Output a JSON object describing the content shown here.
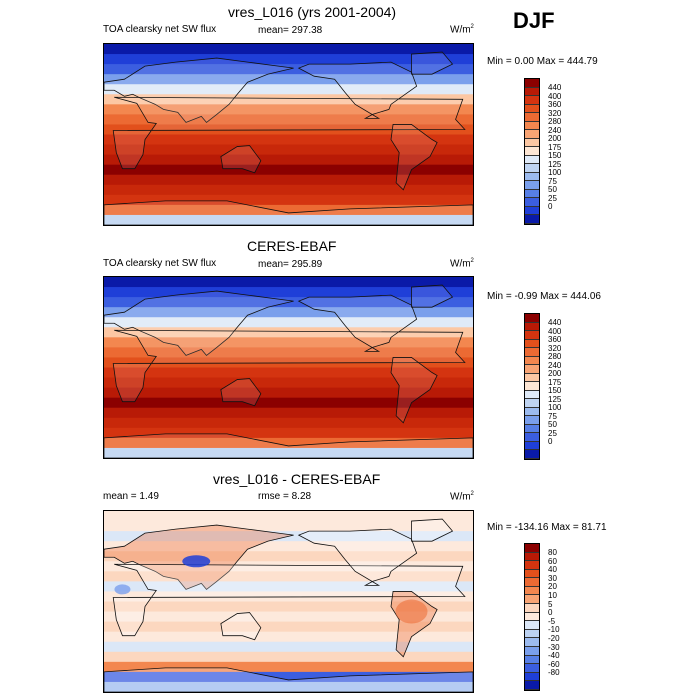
{
  "season": "DJF",
  "panels": [
    {
      "title": "vres_L016 (yrs 2001-2004)",
      "left_label": "TOA clearsky net SW flux",
      "center_label": "mean=  297.38",
      "unit": "W/m",
      "unit_sup": "2",
      "minmax": "Min =   0.00 Max = 444.79",
      "type": "absolute",
      "colorbar": {
        "labels": [
          "440",
          "400",
          "360",
          "320",
          "280",
          "240",
          "200",
          "175",
          "150",
          "125",
          "100",
          "75",
          "50",
          "25",
          "0"
        ],
        "colors": [
          "#8b0000",
          "#b81a06",
          "#d43410",
          "#e2501c",
          "#ec6a33",
          "#f3874f",
          "#f8a474",
          "#fcc7a3",
          "#fde6d4",
          "#dfeaf8",
          "#bfd4f2",
          "#9cbbef",
          "#7a9fec",
          "#577fe6",
          "#3b5ee0",
          "#1f3fd8",
          "#0a1aa8"
        ]
      }
    },
    {
      "title": "CERES-EBAF",
      "left_label": "TOA clearsky net SW flux",
      "center_label": "mean=  295.89",
      "unit": "W/m",
      "unit_sup": "2",
      "minmax": "Min =  -0.99 Max = 444.06",
      "type": "absolute",
      "colorbar": {
        "labels": [
          "440",
          "400",
          "360",
          "320",
          "280",
          "240",
          "200",
          "175",
          "150",
          "125",
          "100",
          "75",
          "50",
          "25",
          "0"
        ],
        "colors": [
          "#8b0000",
          "#b81a06",
          "#d43410",
          "#e2501c",
          "#ec6a33",
          "#f3874f",
          "#f8a474",
          "#fcc7a3",
          "#fde6d4",
          "#dfeaf8",
          "#bfd4f2",
          "#9cbbef",
          "#7a9fec",
          "#577fe6",
          "#3b5ee0",
          "#1f3fd8",
          "#0a1aa8"
        ]
      }
    },
    {
      "title": "vres_L016 - CERES-EBAF",
      "left_label": "mean =   1.49",
      "center_label": "rmse =   8.28",
      "unit": "W/m",
      "unit_sup": "2",
      "minmax": "Min = -134.16 Max =  81.71",
      "type": "difference",
      "colorbar": {
        "labels": [
          "80",
          "60",
          "40",
          "30",
          "20",
          "10",
          "5",
          "0",
          "-5",
          "-10",
          "-20",
          "-30",
          "-40",
          "-60",
          "-80"
        ],
        "colors": [
          "#8b0000",
          "#b81a06",
          "#d43410",
          "#e2501c",
          "#ec6a33",
          "#f3874f",
          "#f8a474",
          "#fcd7bf",
          "#fde9dc",
          "#dbe7f7",
          "#bcd2f2",
          "#9cbbef",
          "#7a9fec",
          "#577fe6",
          "#3b5ee0",
          "#1f3fd8",
          "#0a1aa8"
        ]
      }
    }
  ]
}
